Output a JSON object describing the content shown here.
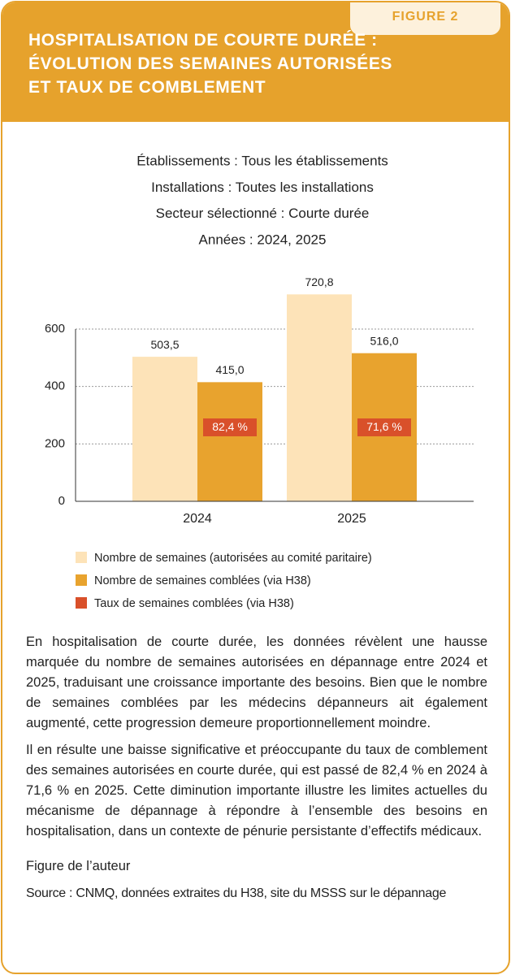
{
  "figure_label": "FIGURE 2",
  "title": "HOSPITALISATION DE COURTE DURÉE : ÉVOLUTION DES SEMAINES AUTORISÉES ET TAUX DE COMBLEMENT",
  "chart_data": {
    "type": "bar",
    "subtitle": [
      "Établissements : Tous les établissements",
      "Installations : Toutes les installations",
      "Secteur sélectionné : Courte durée",
      "Années : 2024, 2025"
    ],
    "categories": [
      "2024",
      "2025"
    ],
    "series": [
      {
        "name": "Nombre de semaines (autorisées au comité paritaire)",
        "color": "#fde3b8",
        "values": [
          503.5,
          720.8
        ],
        "value_labels": [
          "503,5",
          "720,8"
        ]
      },
      {
        "name": "Nombre de semaines comblées (via H38)",
        "color": "#e8a32e",
        "values": [
          415.0,
          516.0
        ],
        "value_labels": [
          "415,0",
          "516,0"
        ]
      },
      {
        "name": "Taux de semaines comblées (via H38)",
        "color": "#d9502a",
        "values": [
          82.4,
          71.6
        ],
        "value_labels": [
          "82,4 %",
          "71,6 %"
        ]
      }
    ],
    "ylim": [
      0,
      600
    ],
    "yticks": [
      0,
      200,
      400,
      600
    ],
    "grid": true
  },
  "paragraphs": [
    "En hospitalisation de courte durée, les données révèlent une hausse marquée du nombre de semaines autorisées en dépannage entre 2024 et 2025, traduisant une croissance importante des besoins. Bien que le nombre de semaines comblées par les médecins dépanneurs ait également augmenté, cette progression demeure proportionnellement moindre.",
    "Il en résulte une baisse significative et préoccupante du taux de comblement des semaines autorisées en courte durée, qui est passé de 82,4 % en 2024 à 71,6 % en 2025. Cette diminution importante illustre les limites actuelles du mécanisme de dépannage à répondre à l’ensemble des besoins en hospitalisation, dans un contexte de pénurie persistante d’effectifs médicaux."
  ],
  "credit": "Figure de l’auteur",
  "source": "Source : CNMQ, données extraites du H38, site du MSSS sur le dépannage"
}
